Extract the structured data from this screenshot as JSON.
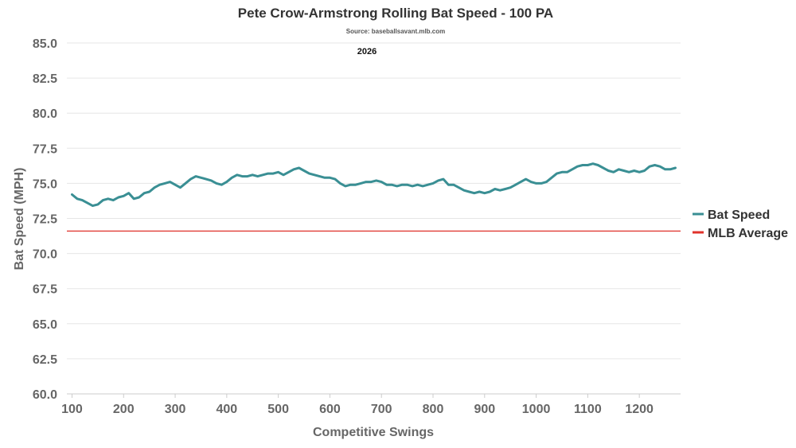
{
  "chart_data": {
    "type": "line",
    "title": "Pete Crow-Armstrong Rolling Bat Speed - 100 PA",
    "subtitle": "Source: baseballsavant.mlb.com",
    "annotation": "2026",
    "xlabel": "Competitive Swings",
    "ylabel": "Bat Speed (MPH)",
    "xlim": [
      90,
      1280
    ],
    "ylim": [
      60,
      85
    ],
    "x_ticks": [
      100,
      200,
      300,
      400,
      500,
      600,
      700,
      800,
      900,
      1000,
      1100,
      1200
    ],
    "y_ticks": [
      "60.0",
      "62.5",
      "65.0",
      "67.5",
      "70.0",
      "72.5",
      "75.0",
      "77.5",
      "80.0",
      "82.5",
      "85.0"
    ],
    "grid": true,
    "legend_position": "right",
    "series": [
      {
        "name": "Bat Speed",
        "color": "#3a8f94",
        "points": [
          [
            100,
            74.2
          ],
          [
            110,
            73.9
          ],
          [
            120,
            73.8
          ],
          [
            130,
            73.6
          ],
          [
            140,
            73.4
          ],
          [
            150,
            73.5
          ],
          [
            160,
            73.8
          ],
          [
            170,
            73.9
          ],
          [
            180,
            73.8
          ],
          [
            190,
            74.0
          ],
          [
            200,
            74.1
          ],
          [
            210,
            74.3
          ],
          [
            220,
            73.9
          ],
          [
            230,
            74.0
          ],
          [
            240,
            74.3
          ],
          [
            250,
            74.4
          ],
          [
            260,
            74.7
          ],
          [
            270,
            74.9
          ],
          [
            280,
            75.0
          ],
          [
            290,
            75.1
          ],
          [
            300,
            74.9
          ],
          [
            310,
            74.7
          ],
          [
            320,
            75.0
          ],
          [
            330,
            75.3
          ],
          [
            340,
            75.5
          ],
          [
            350,
            75.4
          ],
          [
            360,
            75.3
          ],
          [
            370,
            75.2
          ],
          [
            380,
            75.0
          ],
          [
            390,
            74.9
          ],
          [
            400,
            75.1
          ],
          [
            410,
            75.4
          ],
          [
            420,
            75.6
          ],
          [
            430,
            75.5
          ],
          [
            440,
            75.5
          ],
          [
            450,
            75.6
          ],
          [
            460,
            75.5
          ],
          [
            470,
            75.6
          ],
          [
            480,
            75.7
          ],
          [
            490,
            75.7
          ],
          [
            500,
            75.8
          ],
          [
            510,
            75.6
          ],
          [
            520,
            75.8
          ],
          [
            530,
            76.0
          ],
          [
            540,
            76.1
          ],
          [
            550,
            75.9
          ],
          [
            560,
            75.7
          ],
          [
            570,
            75.6
          ],
          [
            580,
            75.5
          ],
          [
            590,
            75.4
          ],
          [
            600,
            75.4
          ],
          [
            610,
            75.3
          ],
          [
            620,
            75.0
          ],
          [
            630,
            74.8
          ],
          [
            640,
            74.9
          ],
          [
            650,
            74.9
          ],
          [
            660,
            75.0
          ],
          [
            670,
            75.1
          ],
          [
            680,
            75.1
          ],
          [
            690,
            75.2
          ],
          [
            700,
            75.1
          ],
          [
            710,
            74.9
          ],
          [
            720,
            74.9
          ],
          [
            730,
            74.8
          ],
          [
            740,
            74.9
          ],
          [
            750,
            74.9
          ],
          [
            760,
            74.8
          ],
          [
            770,
            74.9
          ],
          [
            780,
            74.8
          ],
          [
            790,
            74.9
          ],
          [
            800,
            75.0
          ],
          [
            810,
            75.2
          ],
          [
            820,
            75.3
          ],
          [
            830,
            74.9
          ],
          [
            840,
            74.9
          ],
          [
            850,
            74.7
          ],
          [
            860,
            74.5
          ],
          [
            870,
            74.4
          ],
          [
            880,
            74.3
          ],
          [
            890,
            74.4
          ],
          [
            900,
            74.3
          ],
          [
            910,
            74.4
          ],
          [
            920,
            74.6
          ],
          [
            930,
            74.5
          ],
          [
            940,
            74.6
          ],
          [
            950,
            74.7
          ],
          [
            960,
            74.9
          ],
          [
            970,
            75.1
          ],
          [
            980,
            75.3
          ],
          [
            990,
            75.1
          ],
          [
            1000,
            75.0
          ],
          [
            1010,
            75.0
          ],
          [
            1020,
            75.1
          ],
          [
            1030,
            75.4
          ],
          [
            1040,
            75.7
          ],
          [
            1050,
            75.8
          ],
          [
            1060,
            75.8
          ],
          [
            1070,
            76.0
          ],
          [
            1080,
            76.2
          ],
          [
            1090,
            76.3
          ],
          [
            1100,
            76.3
          ],
          [
            1110,
            76.4
          ],
          [
            1120,
            76.3
          ],
          [
            1130,
            76.1
          ],
          [
            1140,
            75.9
          ],
          [
            1150,
            75.8
          ],
          [
            1160,
            76.0
          ],
          [
            1170,
            75.9
          ],
          [
            1180,
            75.8
          ],
          [
            1190,
            75.9
          ],
          [
            1200,
            75.8
          ],
          [
            1210,
            75.9
          ],
          [
            1220,
            76.2
          ],
          [
            1230,
            76.3
          ],
          [
            1240,
            76.2
          ],
          [
            1250,
            76.0
          ],
          [
            1260,
            76.0
          ],
          [
            1270,
            76.1
          ]
        ]
      },
      {
        "name": "MLB Average",
        "color": "#e0322b",
        "value": 71.6
      }
    ]
  }
}
